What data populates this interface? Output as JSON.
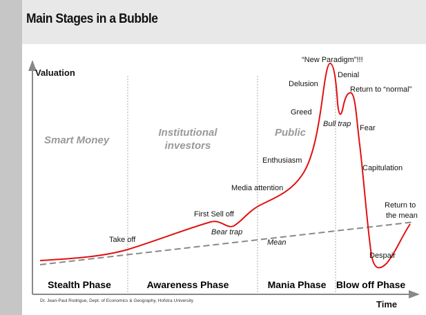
{
  "title": "Main Stages in a Bubble",
  "axes": {
    "y_label": "Valuation",
    "x_label": "Time"
  },
  "groups": [
    "Smart Money",
    "Institutional",
    "investors",
    "Public"
  ],
  "phases": [
    "Stealth Phase",
    "Awareness Phase",
    "Mania Phase",
    "Blow off Phase"
  ],
  "annotations": {
    "take_off": "Take off",
    "first_sell_off": "First Sell off",
    "bear_trap": "Bear trap",
    "media_attention": "Media attention",
    "enthusiasm": "Enthusiasm",
    "greed": "Greed",
    "delusion": "Delusion",
    "new_paradigm": "“New Paradigm”!!!",
    "denial": "Denial",
    "bull_trap": "Bull trap",
    "return_normal": "Return to “normal”",
    "fear": "Fear",
    "capitulation": "Capitulation",
    "despair": "Despair",
    "return_mean_1": "Return to",
    "return_mean_2": "the mean",
    "mean": "Mean"
  },
  "credit": "Dr. Jean-Paul Rodrigue, Dept. of Economics & Geography, Hofstra University",
  "colors": {
    "curve": "#e01010",
    "mean_line": "#888888",
    "axis": "#888888",
    "header": "#e8e8e8",
    "sidebar": "#c6c6c6"
  }
}
